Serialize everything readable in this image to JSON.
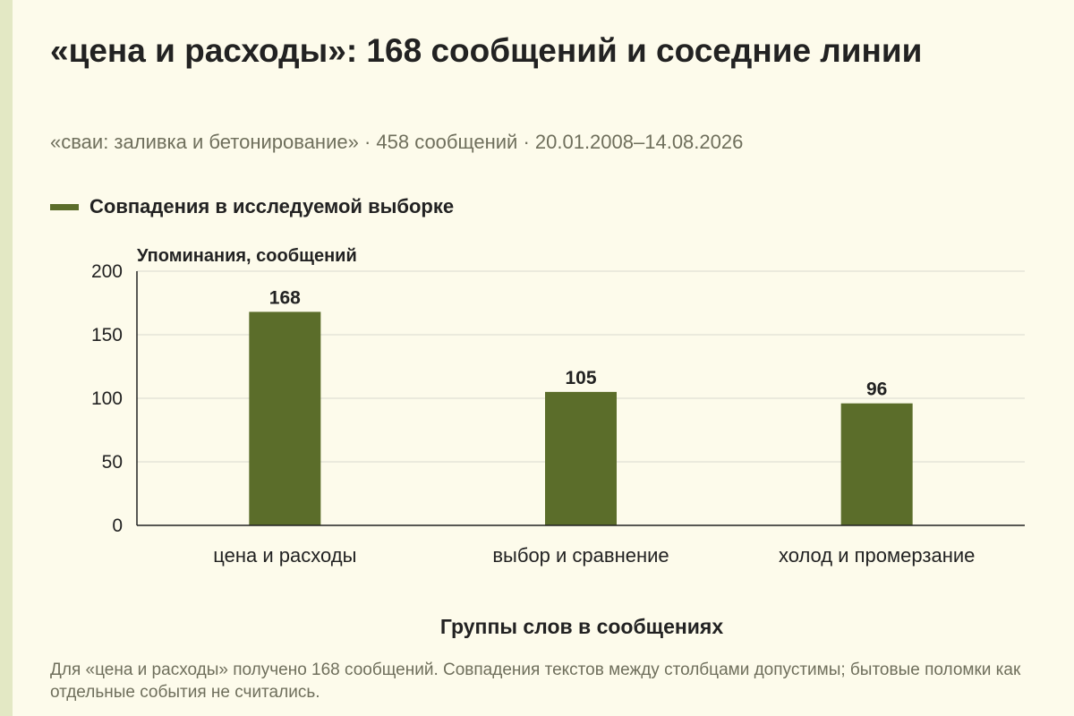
{
  "header": {
    "title": "«цена и расходы»: 168 сообщений и соседние линии",
    "subtitle": "«сваи: заливка и бетонирование» · 458 сообщений · 20.01.2008–14.08.2026"
  },
  "footnote": "Для «цена и расходы» получено 168 сообщений. Совпадения текстов между столбцами допустимы; бытовые поломки как отдельные события не считались.",
  "colors": {
    "bar": "#5b6d2a",
    "grid": "#d9d9cf",
    "axis": "#222222"
  },
  "chart_data": {
    "type": "bar",
    "title": "«цена и расходы»: 168 сообщений и соседние линии",
    "xlabel": "Группы слов в сообщениях",
    "ylabel": "Упоминания, сообщений",
    "ylim": [
      0,
      200
    ],
    "yticks": [
      0,
      50,
      100,
      150,
      200
    ],
    "grid": true,
    "legend_position": "top-left",
    "categories": [
      "цена и расходы",
      "выбор и сравнение",
      "холод и промерзание"
    ],
    "series": [
      {
        "name": "Совпадения в исследуемой выборке",
        "values": [
          168,
          105,
          96
        ]
      }
    ]
  }
}
